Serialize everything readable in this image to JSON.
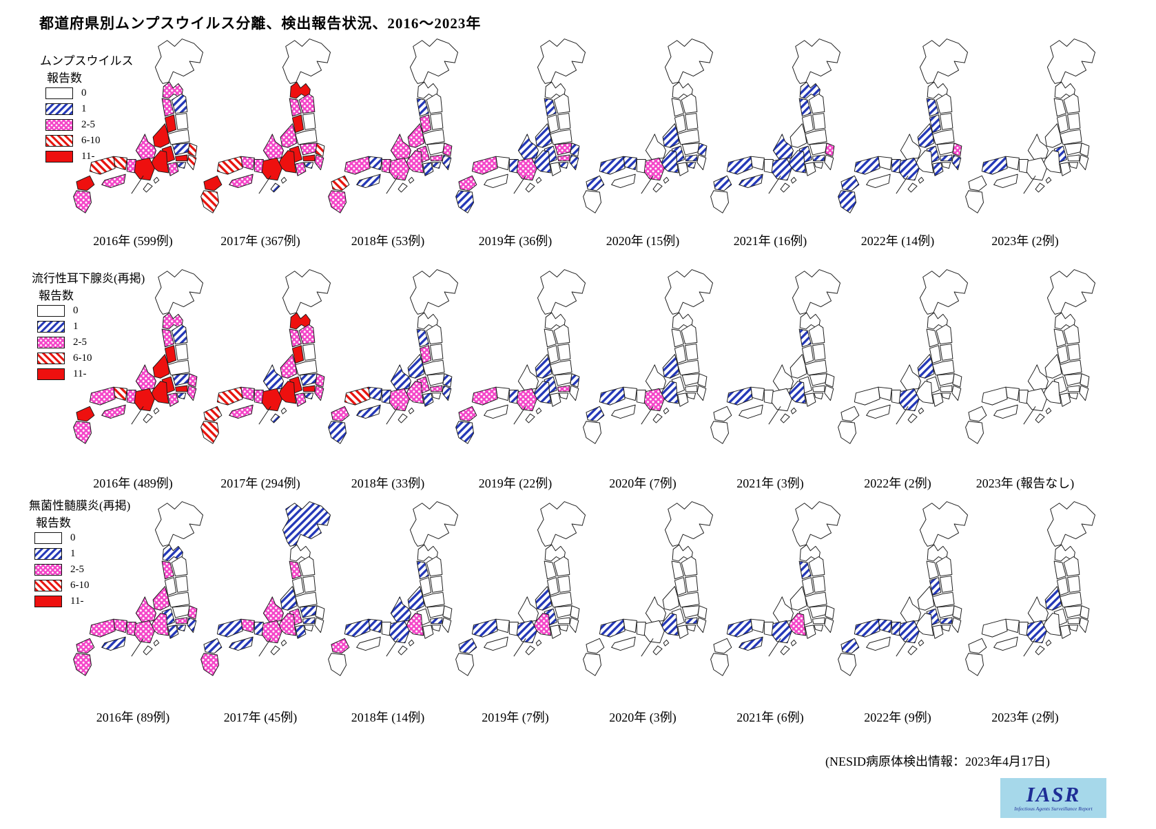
{
  "title": "都道府県別ムンプスウイルス分離、検出報告状況、2016～2023年",
  "legend": {
    "subtitle": "報告数",
    "bins": [
      {
        "label": "0",
        "style": "none"
      },
      {
        "label": "1",
        "style": "hatch-blue"
      },
      {
        "label": "2-5",
        "style": "dots-pink"
      },
      {
        "label": "6-10",
        "style": "hatch-red"
      },
      {
        "label": "11-",
        "style": "solid-red"
      }
    ]
  },
  "colors": {
    "hatch_blue": "#2438b8",
    "dots_pink": "#f446c8",
    "red": "#ee100f",
    "logo_bg": "#a6d8ea",
    "logo_text": "#1e2d96"
  },
  "footer": {
    "source_note": "(NESID病原体検出情報：2023年4月17日)",
    "logo_title": "IASR",
    "logo_subtitle": "Infectious Agents Surveillance Report"
  },
  "chart_data": {
    "type": "choropleth-small-multiples",
    "map": "Japan prefectures (simplified regions)",
    "bin_labels": [
      "0",
      "1",
      "2-5",
      "6-10",
      "11-"
    ],
    "region_order": [
      "hokkaido",
      "aomori",
      "akita",
      "iwate",
      "yamagata",
      "miyagi",
      "fukushima",
      "niigata",
      "hokuriku",
      "nagano",
      "gunma-tochigi",
      "ibaraki",
      "saitama-tokyo",
      "chiba",
      "kanagawa",
      "yamanashi-shizuoka",
      "gifu-aichi",
      "kinki",
      "hyogo",
      "chugoku-east",
      "chugoku-west",
      "shikoku",
      "kyushu-north",
      "kyushu-south",
      "okinawa"
    ],
    "rows": [
      {
        "title": "ムンプスウイルス",
        "subtitle": "報告数",
        "totals": [
          599,
          367,
          53,
          36,
          15,
          16,
          14,
          2
        ],
        "panels": [
          {
            "year": "2016年",
            "count_label": "(599例)",
            "regions": [
              0,
              2,
              2,
              1,
              4,
              0,
              0,
              4,
              2,
              4,
              1,
              3,
              4,
              3,
              1,
              2,
              4,
              4,
              2,
              3,
              3,
              2,
              4,
              2,
              0
            ]
          },
          {
            "year": "2017年",
            "count_label": "(367例)",
            "regions": [
              0,
              4,
              2,
              2,
              4,
              0,
              0,
              2,
              2,
              4,
              2,
              3,
              4,
              2,
              1,
              2,
              4,
              4,
              2,
              2,
              3,
              2,
              4,
              3,
              1
            ]
          },
          {
            "year": "2018年",
            "count_label": "(53例)",
            "regions": [
              0,
              0,
              1,
              0,
              2,
              0,
              0,
              2,
              2,
              2,
              0,
              2,
              2,
              1,
              1,
              1,
              2,
              2,
              2,
              1,
              2,
              1,
              3,
              2,
              0
            ]
          },
          {
            "year": "2019年",
            "count_label": "(36例)",
            "regions": [
              0,
              0,
              1,
              0,
              0,
              0,
              0,
              1,
              1,
              1,
              2,
              1,
              2,
              1,
              1,
              0,
              1,
              2,
              1,
              0,
              2,
              0,
              2,
              1,
              0
            ]
          },
          {
            "year": "2020年",
            "count_label": "(15例)",
            "regions": [
              0,
              0,
              0,
              0,
              0,
              0,
              0,
              1,
              0,
              1,
              0,
              1,
              1,
              0,
              1,
              0,
              1,
              2,
              0,
              1,
              1,
              0,
              1,
              0,
              0
            ]
          },
          {
            "year": "2021年",
            "count_label": "(16例)",
            "regions": [
              0,
              1,
              1,
              0,
              0,
              0,
              0,
              0,
              1,
              1,
              0,
              2,
              1,
              0,
              0,
              0,
              1,
              1,
              0,
              0,
              1,
              1,
              1,
              0,
              0
            ]
          },
          {
            "year": "2022年",
            "count_label": "(14例)",
            "regions": [
              0,
              0,
              1,
              0,
              1,
              0,
              0,
              1,
              0,
              1,
              0,
              2,
              1,
              1,
              0,
              1,
              0,
              1,
              1,
              0,
              1,
              0,
              1,
              1,
              0
            ]
          },
          {
            "year": "2023年",
            "count_label": "(2例)",
            "regions": [
              0,
              0,
              0,
              0,
              0,
              0,
              0,
              0,
              0,
              1,
              0,
              0,
              0,
              0,
              0,
              0,
              0,
              0,
              0,
              0,
              1,
              0,
              0,
              0,
              0
            ]
          }
        ]
      },
      {
        "title": "流行性耳下腺炎(再掲)",
        "subtitle": "報告数",
        "totals": [
          489,
          294,
          33,
          22,
          7,
          3,
          2,
          null
        ],
        "panels": [
          {
            "year": "2016年",
            "count_label": "(489例)",
            "regions": [
              0,
              2,
              2,
              1,
              4,
              0,
              0,
              4,
              2,
              4,
              1,
              2,
              4,
              2,
              1,
              2,
              4,
              4,
              2,
              3,
              2,
              2,
              4,
              2,
              0
            ]
          },
          {
            "year": "2017年",
            "count_label": "(294例)",
            "regions": [
              0,
              4,
              2,
              2,
              4,
              0,
              0,
              2,
              1,
              4,
              1,
              2,
              4,
              2,
              1,
              2,
              4,
              4,
              2,
              2,
              3,
              2,
              3,
              3,
              1
            ]
          },
          {
            "year": "2018年",
            "count_label": "(33例)",
            "regions": [
              0,
              0,
              1,
              0,
              2,
              0,
              0,
              1,
              1,
              2,
              0,
              1,
              2,
              1,
              0,
              1,
              2,
              2,
              1,
              1,
              3,
              1,
              2,
              1,
              0
            ]
          },
          {
            "year": "2019年",
            "count_label": "(22例)",
            "regions": [
              0,
              0,
              0,
              0,
              0,
              0,
              0,
              1,
              0,
              1,
              0,
              1,
              2,
              0,
              0,
              0,
              1,
              2,
              1,
              0,
              2,
              0,
              2,
              1,
              0
            ]
          },
          {
            "year": "2020年",
            "count_label": "(7例)",
            "regions": [
              0,
              0,
              0,
              0,
              0,
              0,
              0,
              1,
              0,
              0,
              0,
              0,
              0,
              0,
              0,
              0,
              1,
              2,
              0,
              0,
              1,
              0,
              1,
              0,
              0
            ]
          },
          {
            "year": "2021年",
            "count_label": "(3例)",
            "regions": [
              0,
              0,
              1,
              0,
              0,
              0,
              0,
              0,
              0,
              0,
              0,
              0,
              0,
              0,
              0,
              0,
              1,
              0,
              0,
              0,
              1,
              0,
              0,
              0,
              0
            ]
          },
          {
            "year": "2022年",
            "count_label": "(2例)",
            "regions": [
              0,
              0,
              0,
              0,
              0,
              0,
              0,
              1,
              0,
              0,
              0,
              0,
              0,
              0,
              0,
              0,
              0,
              1,
              0,
              0,
              0,
              0,
              0,
              0,
              0
            ]
          },
          {
            "year": "2023年",
            "count_label": "(報告なし)",
            "regions": [
              0,
              0,
              0,
              0,
              0,
              0,
              0,
              0,
              0,
              0,
              0,
              0,
              0,
              0,
              0,
              0,
              0,
              0,
              0,
              0,
              0,
              0,
              0,
              0,
              0
            ]
          }
        ]
      },
      {
        "title": "無菌性髄膜炎(再掲)",
        "subtitle": "報告数",
        "totals": [
          89,
          45,
          14,
          7,
          3,
          6,
          9,
          2
        ],
        "panels": [
          {
            "year": "2016年",
            "count_label": "(89例)",
            "regions": [
              0,
              1,
              2,
              0,
              0,
              0,
              0,
              2,
              2,
              1,
              0,
              2,
              2,
              1,
              1,
              1,
              2,
              2,
              2,
              2,
              2,
              1,
              2,
              2,
              0
            ]
          },
          {
            "year": "2017年",
            "count_label": "(45例)",
            "regions": [
              1,
              0,
              2,
              0,
              0,
              0,
              0,
              1,
              2,
              2,
              1,
              0,
              1,
              0,
              0,
              1,
              2,
              2,
              1,
              2,
              1,
              1,
              1,
              2,
              0
            ]
          },
          {
            "year": "2018年",
            "count_label": "(14例)",
            "regions": [
              0,
              0,
              1,
              0,
              0,
              0,
              0,
              1,
              1,
              0,
              0,
              0,
              1,
              0,
              0,
              0,
              2,
              1,
              0,
              1,
              1,
              0,
              2,
              0,
              0
            ]
          },
          {
            "year": "2019年",
            "count_label": "(7例)",
            "regions": [
              0,
              0,
              0,
              0,
              0,
              0,
              0,
              1,
              0,
              1,
              0,
              0,
              0,
              0,
              0,
              0,
              2,
              1,
              0,
              0,
              1,
              0,
              1,
              0,
              0
            ]
          },
          {
            "year": "2020年",
            "count_label": "(3例)",
            "regions": [
              0,
              0,
              0,
              0,
              0,
              0,
              0,
              0,
              0,
              0,
              0,
              0,
              1,
              0,
              0,
              0,
              1,
              0,
              0,
              0,
              1,
              0,
              0,
              0,
              0
            ]
          },
          {
            "year": "2021年",
            "count_label": "(6例)",
            "regions": [
              0,
              0,
              1,
              0,
              0,
              0,
              0,
              0,
              0,
              0,
              0,
              0,
              0,
              0,
              0,
              0,
              2,
              1,
              0,
              0,
              1,
              1,
              0,
              0,
              0
            ]
          },
          {
            "year": "2022年",
            "count_label": "(9例)",
            "regions": [
              0,
              0,
              0,
              0,
              1,
              0,
              0,
              0,
              0,
              1,
              0,
              0,
              1,
              0,
              0,
              0,
              0,
              1,
              1,
              1,
              1,
              0,
              1,
              0,
              0
            ]
          },
          {
            "year": "2023年",
            "count_label": "(2例)",
            "regions": [
              0,
              0,
              0,
              0,
              0,
              0,
              0,
              1,
              0,
              0,
              0,
              0,
              0,
              0,
              0,
              0,
              0,
              1,
              0,
              0,
              0,
              0,
              0,
              0,
              0
            ]
          }
        ]
      }
    ]
  }
}
